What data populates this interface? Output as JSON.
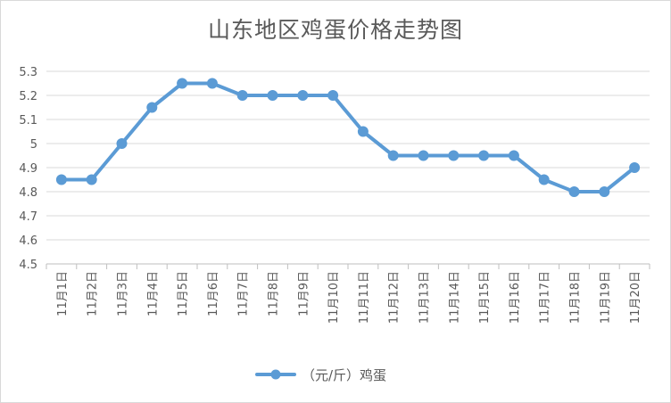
{
  "chart_data": {
    "type": "line",
    "title": "山东地区鸡蛋价格走势图",
    "categories": [
      "11月1日",
      "11月2日",
      "11月3日",
      "11月4日",
      "11月5日",
      "11月6日",
      "11月7日",
      "11月8日",
      "11月9日",
      "11月10日",
      "11月11日",
      "11月12日",
      "11月13日",
      "11月14日",
      "11月15日",
      "11月16日",
      "11月17日",
      "11月18日",
      "11月19日",
      "11月20日"
    ],
    "series": [
      {
        "name": "（元/斤）鸡蛋",
        "values": [
          4.85,
          4.85,
          5.0,
          5.15,
          5.25,
          5.25,
          5.2,
          5.2,
          5.2,
          5.2,
          5.05,
          4.95,
          4.95,
          4.95,
          4.95,
          4.95,
          4.85,
          4.8,
          4.8,
          4.9
        ],
        "color": "#5b9bd5"
      }
    ],
    "yticks": [
      "4.5",
      "4.6",
      "4.7",
      "4.8",
      "4.9",
      "5",
      "5.1",
      "5.2",
      "5.3"
    ],
    "ylim": [
      4.5,
      5.3
    ],
    "grid": true,
    "legend": "bottom"
  }
}
